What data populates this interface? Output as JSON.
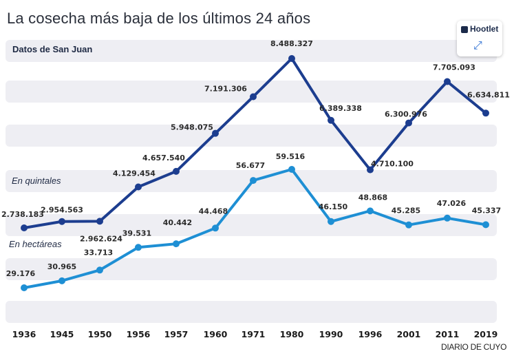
{
  "title": "La cosecha más baja de los últimos 24 años",
  "credit": "DIARIO DE CUYO",
  "hootlet": {
    "label": "Hootlet",
    "icon": "owl-icon",
    "expand_icon": "expand-icon"
  },
  "colors": {
    "quintales": "#1c3d8f",
    "hectareas": "#1e8fd4",
    "band": "#eeeeF3"
  },
  "chart_data": {
    "type": "line",
    "subtitle": "Datos de San Juan",
    "categories": [
      "1936",
      "1945",
      "1950",
      "1956",
      "1957",
      "1960",
      "1971",
      "1980",
      "1990",
      "1996",
      "2001",
      "2011",
      "2019"
    ],
    "series": [
      {
        "name": "En quintales",
        "values": [
          2738183,
          2954563,
          2962624,
          4129454,
          4657540,
          5948075,
          7191306,
          8488327,
          6389338,
          4710100,
          6300976,
          7705093,
          6634811
        ],
        "labels": [
          "2.738.183",
          "2.954.563",
          "2.962.624",
          "4.129.454",
          "4.657.540",
          "5.948.075",
          "7.191.306",
          "8.488.327",
          "6.389.338",
          "4.710.100",
          "6.300.976",
          "7.705.093",
          "6.634.811"
        ]
      },
      {
        "name": "En hectáreas",
        "values": [
          29176,
          30965,
          33713,
          39531,
          40442,
          44468,
          56677,
          59516,
          46150,
          48868,
          45285,
          47026,
          45337
        ],
        "labels": [
          "29.176",
          "30.965",
          "33.713",
          "39.531",
          "40.442",
          "44.468",
          "56.677",
          "59.516",
          "46.150",
          "48.868",
          "45.285",
          "47.026",
          "45.337"
        ]
      }
    ],
    "grid": true,
    "legend": "inline labels on left"
  }
}
